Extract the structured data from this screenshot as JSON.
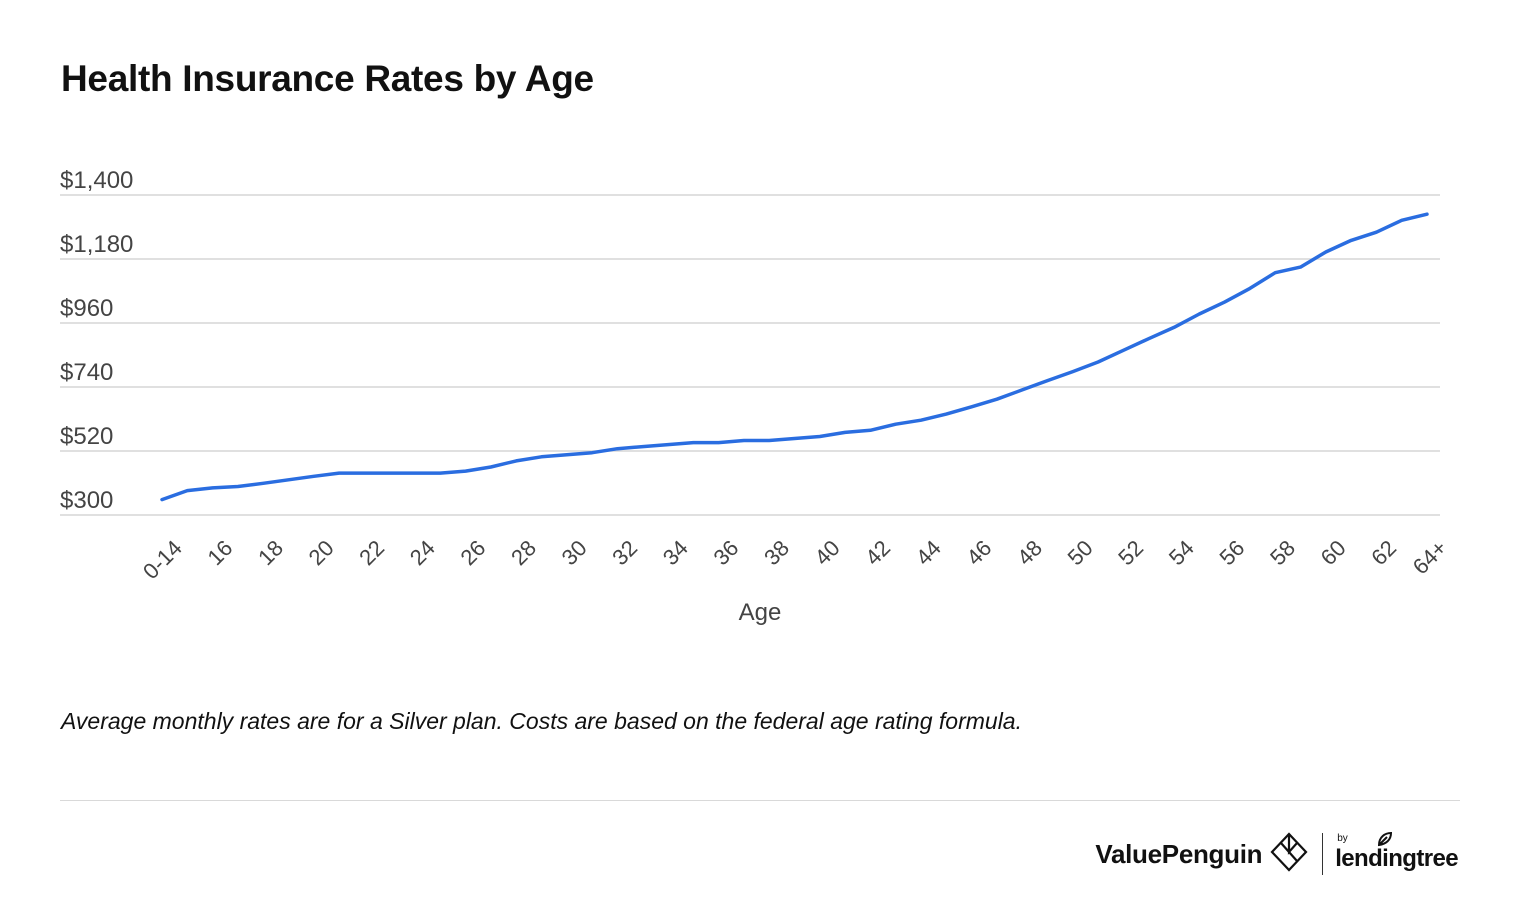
{
  "title": "Health Insurance Rates by Age",
  "note": "Average monthly rates are for a Silver plan. Costs are based on the federal age rating formula.",
  "brand": {
    "valuepenguin": "ValuePenguin",
    "by": "by",
    "lendingtree": "lendingtree"
  },
  "colors": {
    "line": "#2a6de0",
    "grid": "#d6d6d6",
    "axis_text": "#444444"
  },
  "icons": {
    "valuepenguin_logo": "valuepenguin-diamond-icon",
    "lendingtree_leaf": "leaf-icon"
  },
  "chart_data": {
    "type": "line",
    "xlabel": "Age",
    "ylabel": "",
    "ylim": [
      300,
      1400
    ],
    "yticks": [
      300,
      520,
      740,
      960,
      1180,
      1400
    ],
    "ytick_labels": [
      "$300",
      "$520",
      "$740",
      "$960",
      "$1,180",
      "$1,400"
    ],
    "grid": true,
    "categories": [
      "0-14",
      "15",
      "16",
      "17",
      "18",
      "19",
      "20",
      "21",
      "22",
      "23",
      "24",
      "25",
      "26",
      "27",
      "28",
      "29",
      "30",
      "31",
      "32",
      "33",
      "34",
      "35",
      "36",
      "37",
      "38",
      "39",
      "40",
      "41",
      "42",
      "43",
      "44",
      "45",
      "46",
      "47",
      "48",
      "49",
      "50",
      "51",
      "52",
      "53",
      "54",
      "55",
      "56",
      "57",
      "58",
      "59",
      "60",
      "61",
      "62",
      "63",
      "64+"
    ],
    "xtick_labels": [
      "0-14",
      "16",
      "18",
      "20",
      "22",
      "24",
      "26",
      "28",
      "30",
      "32",
      "34",
      "36",
      "38",
      "40",
      "42",
      "44",
      "46",
      "48",
      "50",
      "52",
      "54",
      "56",
      "58",
      "60",
      "62",
      "64+"
    ],
    "series": [
      {
        "values": [
          353,
          384,
          393,
          398,
          409,
          421,
          433,
          444,
          444,
          444,
          444,
          444,
          451,
          465,
          486,
          500,
          507,
          514,
          528,
          535,
          542,
          549,
          549,
          556,
          556,
          563,
          570,
          584,
          591,
          612,
          626,
          647,
          672,
          698,
          730,
          762,
          793,
          826,
          866,
          906,
          945,
          991,
          1032,
          1079,
          1133,
          1152,
          1204,
          1244,
          1272,
          1313,
          1334
        ]
      }
    ]
  }
}
